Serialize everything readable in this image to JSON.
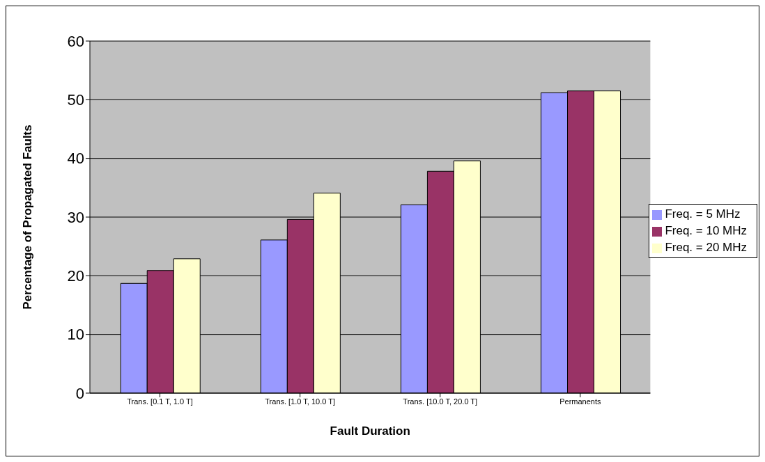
{
  "chart_data": {
    "type": "bar",
    "xlabel": "Fault Duration",
    "ylabel": "Percentage of Propagated Faults",
    "categories": [
      "Trans. [0.1 T, 1.0 T]",
      "Trans. [1.0 T, 10.0 T]",
      "Trans. [10.0 T, 20.0 T]",
      "Permanents"
    ],
    "series": [
      {
        "name": "Freq. = 5 MHz",
        "color": "#9999ff",
        "values": [
          18.7,
          26.1,
          32.1,
          51.2
        ]
      },
      {
        "name": "Freq. = 10 MHz",
        "color": "#993366",
        "values": [
          20.9,
          29.6,
          37.8,
          51.5
        ]
      },
      {
        "name": "Freq. = 20 MHz",
        "color": "#ffffcc",
        "values": [
          22.9,
          34.1,
          39.6,
          51.5
        ]
      }
    ],
    "ylim": [
      0,
      60
    ],
    "yticks": [
      0,
      10,
      20,
      30,
      40,
      50,
      60
    ],
    "grid": "y",
    "legend": "right"
  }
}
